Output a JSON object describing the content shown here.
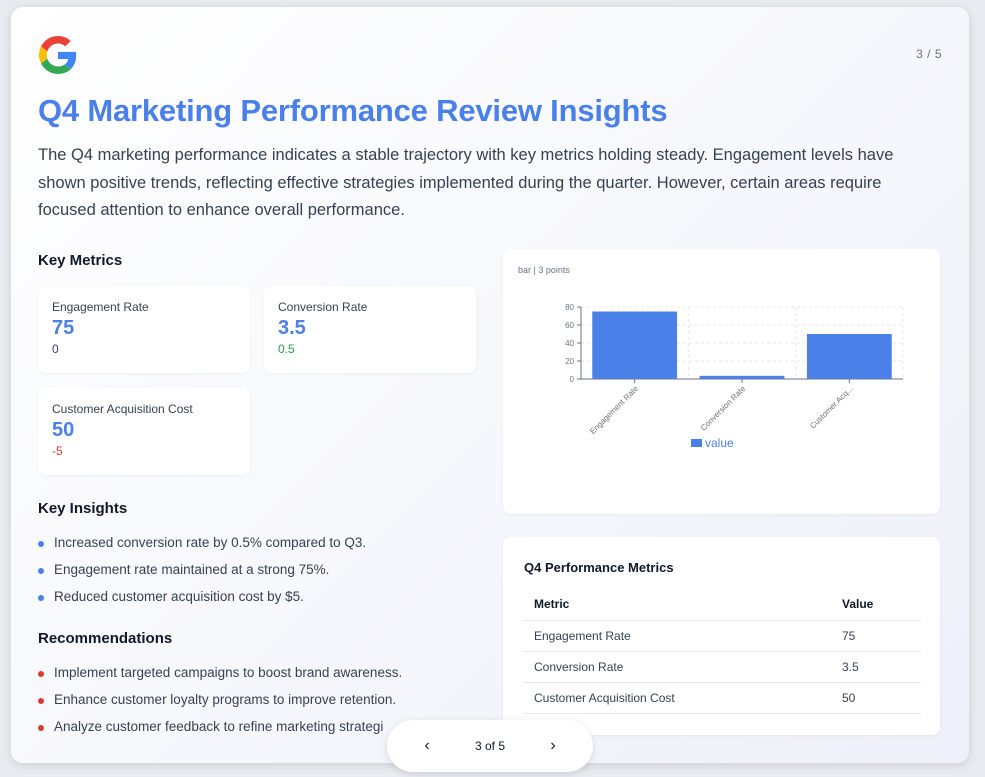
{
  "header": {
    "page_indicator": "3 / 5",
    "title": "Q4 Marketing Performance Review Insights",
    "intro": "The Q4 marketing performance indicates a stable trajectory with key metrics holding steady. Engagement levels have shown positive trends, reflecting effective strategies implemented during the quarter. However, certain areas require focused attention to enhance overall performance."
  },
  "colors": {
    "accent": "#4a80e8",
    "positive": "#2e9b47",
    "negative": "#d83b2f"
  },
  "key_metrics": {
    "heading": "Key Metrics",
    "cards": [
      {
        "label": "Engagement Rate",
        "value": "75",
        "delta": "0"
      },
      {
        "label": "Conversion Rate",
        "value": "3.5",
        "delta": "0.5"
      },
      {
        "label": "Customer Acquisition Cost",
        "value": "50",
        "delta": "-5"
      }
    ]
  },
  "insights": {
    "heading": "Key Insights",
    "items": [
      "Increased conversion rate by 0.5% compared to Q3.",
      "Engagement rate maintained at a strong 75%.",
      "Reduced customer acquisition cost by $5."
    ]
  },
  "recommendations": {
    "heading": "Recommendations",
    "items": [
      "Implement targeted campaigns to boost brand awareness.",
      "Enhance customer loyalty programs to improve retention.",
      "Analyze customer feedback to refine marketing strategi"
    ]
  },
  "chart_caption": "bar | 3 points",
  "chart_data": {
    "type": "bar",
    "categories": [
      "Engagement Rate",
      "Conversion Rate",
      "Customer Acq..."
    ],
    "series": [
      {
        "name": "value",
        "values": [
          75,
          3.5,
          50
        ]
      }
    ],
    "title": "",
    "xlabel": "",
    "ylabel": "",
    "ylim": [
      0,
      80
    ],
    "yticks": [
      0,
      20,
      40,
      60,
      80
    ],
    "grid": true,
    "legend": "bottom",
    "color": "#4a80e8"
  },
  "table": {
    "title": "Q4 Performance Metrics",
    "columns": [
      "Metric",
      "Value"
    ],
    "rows": [
      [
        "Engagement Rate",
        "75"
      ],
      [
        "Conversion Rate",
        "3.5"
      ],
      [
        "Customer Acquisition Cost",
        "50"
      ]
    ]
  },
  "pager": {
    "prev_icon": "chevron-left-icon",
    "next_icon": "chevron-right-icon",
    "prev_glyph": "‹",
    "next_glyph": "›",
    "label": "3 of 5"
  }
}
